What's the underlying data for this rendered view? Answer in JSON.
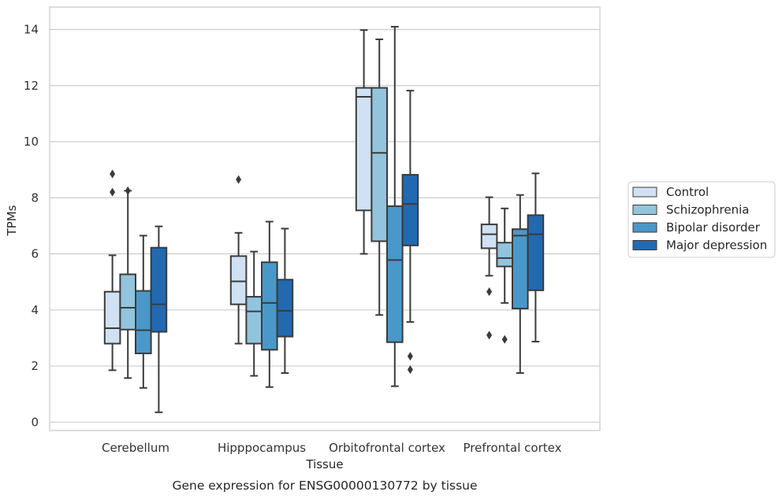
{
  "chart_data": {
    "type": "boxplot",
    "caption": "Gene expression for ENSG00000130772 by tissue",
    "xlabel": "Tissue",
    "ylabel": "TPMs",
    "ylim": [
      -0.3,
      14.8
    ],
    "yticks": [
      0,
      2,
      4,
      6,
      8,
      10,
      12,
      14
    ],
    "grid": true,
    "legend_position": "right",
    "categories": [
      "Cerebellum",
      "Hipppocampus",
      "Orbitofrontal cortex",
      "Prefrontal cortex"
    ],
    "series": [
      {
        "name": "Control",
        "color": "#cfe1f2",
        "boxes": [
          {
            "whislo": 1.85,
            "q1": 2.8,
            "med": 3.35,
            "q3": 4.65,
            "whishi": 5.95,
            "fliers": [
              8.85,
              8.2
            ]
          },
          {
            "whislo": 2.8,
            "q1": 4.2,
            "med": 5.02,
            "q3": 5.92,
            "whishi": 6.75,
            "fliers": [
              8.65
            ]
          },
          {
            "whislo": 6.0,
            "q1": 7.55,
            "med": 11.6,
            "q3": 11.92,
            "whishi": 13.98,
            "fliers": []
          },
          {
            "whislo": 5.22,
            "q1": 6.2,
            "med": 6.7,
            "q3": 7.05,
            "whishi": 8.02,
            "fliers": [
              4.65,
              3.1
            ]
          }
        ]
      },
      {
        "name": "Schizophrenia",
        "color": "#93c4de",
        "boxes": [
          {
            "whislo": 1.57,
            "q1": 3.3,
            "med": 4.08,
            "q3": 5.27,
            "whishi": 8.25,
            "fliers": [
              8.25
            ]
          },
          {
            "whislo": 1.65,
            "q1": 2.8,
            "med": 3.95,
            "q3": 4.47,
            "whishi": 6.08,
            "fliers": []
          },
          {
            "whislo": 3.82,
            "q1": 6.45,
            "med": 9.6,
            "q3": 11.92,
            "whishi": 13.65,
            "fliers": []
          },
          {
            "whislo": 4.25,
            "q1": 5.55,
            "med": 5.85,
            "q3": 6.4,
            "whishi": 7.62,
            "fliers": [
              2.95
            ]
          }
        ]
      },
      {
        "name": "Bipolar disorder",
        "color": "#4a98c9",
        "boxes": [
          {
            "whislo": 1.22,
            "q1": 2.45,
            "med": 3.28,
            "q3": 4.68,
            "whishi": 6.65,
            "fliers": []
          },
          {
            "whislo": 1.25,
            "q1": 2.58,
            "med": 4.25,
            "q3": 5.7,
            "whishi": 7.15,
            "fliers": []
          },
          {
            "whislo": 1.28,
            "q1": 2.85,
            "med": 5.78,
            "q3": 7.7,
            "whishi": 14.1,
            "fliers": []
          },
          {
            "whislo": 1.75,
            "q1": 4.05,
            "med": 6.65,
            "q3": 6.88,
            "whishi": 8.1,
            "fliers": []
          }
        ]
      },
      {
        "name": "Major depression",
        "color": "#2369b0",
        "boxes": [
          {
            "whislo": 0.35,
            "q1": 3.22,
            "med": 4.2,
            "q3": 6.22,
            "whishi": 6.98,
            "fliers": []
          },
          {
            "whislo": 1.75,
            "q1": 3.05,
            "med": 3.97,
            "q3": 5.08,
            "whishi": 6.9,
            "fliers": []
          },
          {
            "whislo": 3.57,
            "q1": 6.3,
            "med": 7.78,
            "q3": 8.82,
            "whishi": 11.82,
            "fliers": [
              2.35,
              1.87
            ]
          },
          {
            "whislo": 2.87,
            "q1": 4.7,
            "med": 6.7,
            "q3": 7.38,
            "whishi": 8.87,
            "fliers": []
          }
        ]
      }
    ]
  }
}
